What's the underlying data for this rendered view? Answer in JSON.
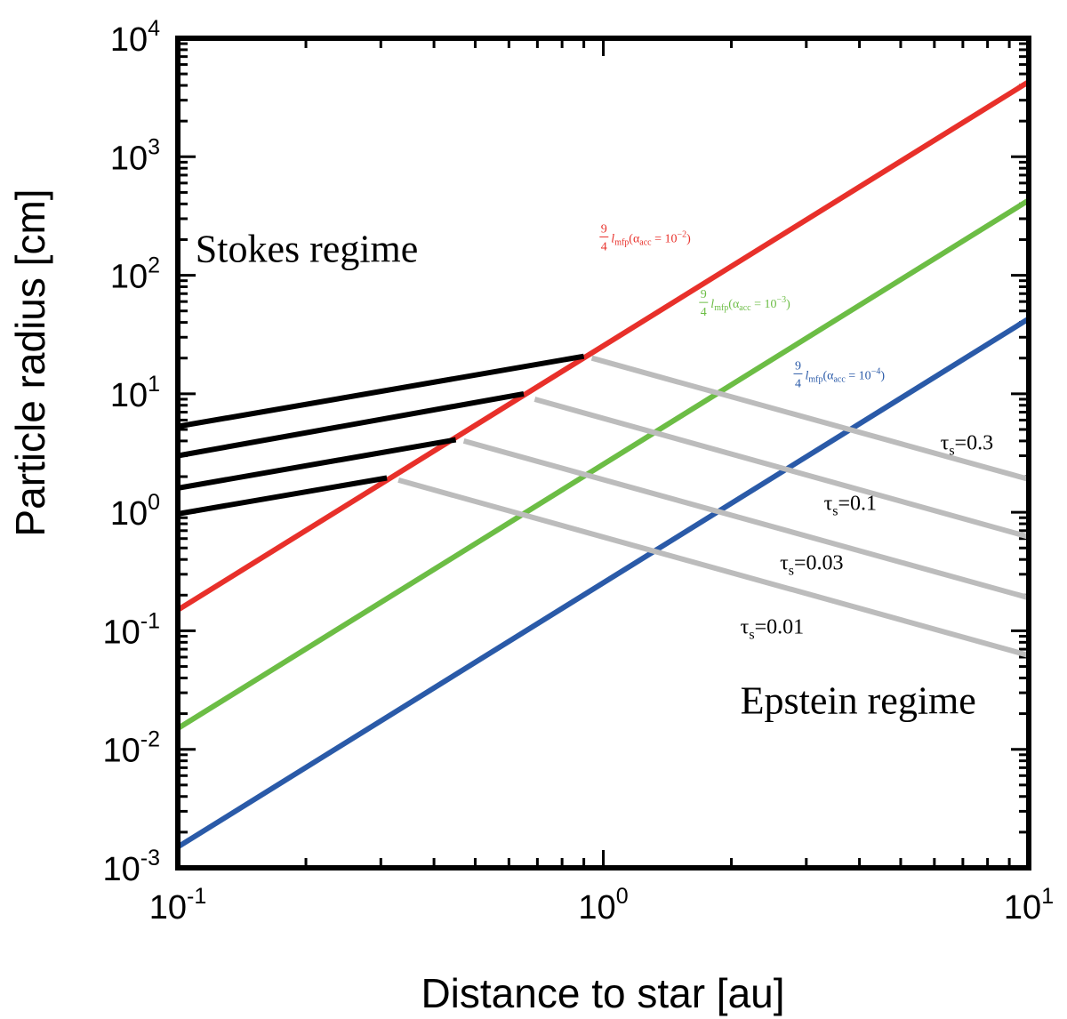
{
  "chart_data": {
    "type": "line",
    "title": "",
    "xlabel": "Distance to star [au]",
    "ylabel": "Particle radius [cm]",
    "xscale": "log",
    "yscale": "log",
    "xlim": [
      0.1,
      10
    ],
    "ylim": [
      0.001,
      10000
    ],
    "x_ticks": [
      {
        "base": "10",
        "exp": "-1",
        "value": 0.1
      },
      {
        "base": "10",
        "exp": "0",
        "value": 1
      },
      {
        "base": "10",
        "exp": "1",
        "value": 10
      }
    ],
    "y_ticks": [
      {
        "base": "10",
        "exp": "-3",
        "value": 0.001
      },
      {
        "base": "10",
        "exp": "-2",
        "value": 0.01
      },
      {
        "base": "10",
        "exp": "-1",
        "value": 0.1
      },
      {
        "base": "10",
        "exp": "0",
        "value": 1
      },
      {
        "base": "10",
        "exp": "1",
        "value": 10
      },
      {
        "base": "10",
        "exp": "2",
        "value": 100
      },
      {
        "base": "10",
        "exp": "3",
        "value": 1000
      },
      {
        "base": "10",
        "exp": "4",
        "value": 10000
      }
    ],
    "regions": [
      {
        "text": "Stokes regime",
        "x": 0.11,
        "y": 130
      },
      {
        "text": "Epstein regime",
        "x": 2.1,
        "y": 0.02
      }
    ],
    "series": [
      {
        "name": "mfp-alpha-1e-2",
        "color": "#e8302a",
        "x": [
          0.1,
          10
        ],
        "y": [
          0.15,
          4300
        ],
        "label": {
          "coef_num": "9",
          "coef_den": "4",
          "sym": "l",
          "sub": "mfp",
          "cond_pre": "(α",
          "cond_sub": "acc",
          "cond_eq": " = 10",
          "cond_exp": "−2",
          "cond_post": ")",
          "x": 0.98,
          "y": 200
        }
      },
      {
        "name": "mfp-alpha-1e-3",
        "color": "#6cbd45",
        "x": [
          0.1,
          10
        ],
        "y": [
          0.015,
          430
        ],
        "label": {
          "coef_num": "9",
          "coef_den": "4",
          "sym": "l",
          "sub": "mfp",
          "cond_pre": "(α",
          "cond_sub": "acc",
          "cond_eq": " = 10",
          "cond_exp": "−3",
          "cond_post": ")",
          "x": 1.68,
          "y": 56
        }
      },
      {
        "name": "mfp-alpha-1e-4",
        "color": "#2a5aa8",
        "x": [
          0.1,
          10
        ],
        "y": [
          0.0015,
          43
        ],
        "label": {
          "coef_num": "9",
          "coef_den": "4",
          "sym": "l",
          "sub": "mfp",
          "cond_pre": "(α",
          "cond_sub": "acc",
          "cond_eq": " = 10",
          "cond_exp": "−4",
          "cond_post": ")",
          "x": 2.8,
          "y": 14
        }
      },
      {
        "name": "stokes-tau-0.3",
        "color": "#000000",
        "x": [
          0.1,
          0.9
        ],
        "y": [
          5.3,
          20.7
        ]
      },
      {
        "name": "stokes-tau-0.1",
        "color": "#000000",
        "x": [
          0.1,
          0.65
        ],
        "y": [
          3.0,
          10.0
        ]
      },
      {
        "name": "stokes-tau-0.03",
        "color": "#000000",
        "x": [
          0.1,
          0.45
        ],
        "y": [
          1.6,
          4.1
        ]
      },
      {
        "name": "stokes-tau-0.01",
        "color": "#000000",
        "x": [
          0.1,
          0.31
        ],
        "y": [
          0.97,
          1.95
        ]
      },
      {
        "name": "epstein-tau-0.3",
        "color": "#bcbcbc",
        "x": [
          0.94,
          10
        ],
        "y": [
          20.0,
          1.9
        ]
      },
      {
        "name": "epstein-tau-0.1",
        "color": "#bcbcbc",
        "x": [
          0.69,
          10
        ],
        "y": [
          9.0,
          0.62
        ]
      },
      {
        "name": "epstein-tau-0.03",
        "color": "#bcbcbc",
        "x": [
          0.47,
          10
        ],
        "y": [
          4.0,
          0.19
        ]
      },
      {
        "name": "epstein-tau-0.01",
        "color": "#bcbcbc",
        "x": [
          0.33,
          10
        ],
        "y": [
          1.87,
          0.062
        ]
      }
    ],
    "annotations": [
      {
        "sym": "τ",
        "sub": "s",
        "val": "=0.3",
        "x": 6.2,
        "y": 3.4
      },
      {
        "sym": "τ",
        "sub": "s",
        "val": "=0.1",
        "x": 3.3,
        "y": 1.05
      },
      {
        "sym": "τ",
        "sub": "s",
        "val": "=0.03",
        "x": 2.6,
        "y": 0.33
      },
      {
        "sym": "τ",
        "sub": "s",
        "val": "=0.01",
        "x": 2.1,
        "y": 0.095
      }
    ]
  }
}
